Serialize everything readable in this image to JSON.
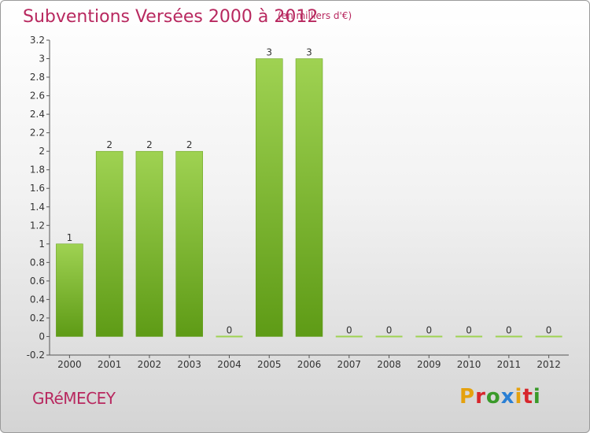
{
  "header": {
    "title": "Subventions Versées 2000 à 2012",
    "subtitle": "(en milliers d'€)"
  },
  "footer": {
    "commune": "GRéMECEY",
    "brand": {
      "letters": [
        "P",
        "r",
        "o",
        "x",
        "i",
        "t",
        "i"
      ],
      "colors": [
        "#e5a10d",
        "#d7262c",
        "#3a9a2a",
        "#2a7fd4",
        "#e5a10d",
        "#d7262c",
        "#3a9a2a"
      ]
    }
  },
  "colors": {
    "title": "#b8285f",
    "bar_light": "#9fd252",
    "bar_dark": "#5e9b16",
    "axis_text": "#333333"
  },
  "chart_data": {
    "type": "bar",
    "categories": [
      "2000",
      "2001",
      "2002",
      "2003",
      "2004",
      "2005",
      "2006",
      "2007",
      "2008",
      "2009",
      "2010",
      "2011",
      "2012"
    ],
    "values": [
      1,
      2,
      2,
      2,
      0,
      3,
      3,
      0,
      0,
      0,
      0,
      0,
      0
    ],
    "data_labels": [
      "1",
      "2",
      "2",
      "2",
      "0",
      "3",
      "3",
      "0",
      "0",
      "0",
      "0",
      "0",
      "0"
    ],
    "title": "Subventions Versées 2000 à 2012",
    "subtitle": "(en milliers d'€)",
    "ylim": [
      -0.2,
      3.2
    ],
    "yticks": [
      "-0.2",
      "0",
      "0.2",
      "0.4",
      "0.6",
      "0.8",
      "1",
      "1.2",
      "1.4",
      "1.6",
      "1.8",
      "2",
      "2.2",
      "2.4",
      "2.6",
      "2.8",
      "3",
      "3.2"
    ],
    "grid": false,
    "legend": "none"
  }
}
